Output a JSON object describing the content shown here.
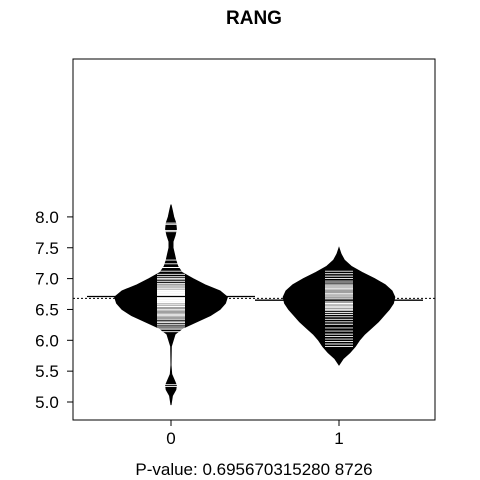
{
  "chart_data": {
    "type": "beanplot",
    "title": "RANG",
    "xlabel": "P-value: 0.695670315280 8726",
    "ylabel": "",
    "ylim": [
      4.85,
      8.35
    ],
    "y_ticks": [
      "5.0",
      "5.5",
      "6.0",
      "6.5",
      "7.0",
      "7.5",
      "8.0"
    ],
    "y_tick_values": [
      5.0,
      5.5,
      6.0,
      6.5,
      7.0,
      7.5,
      8.0
    ],
    "categories": [
      "0",
      "1"
    ],
    "overall_mean_line": 6.68,
    "grid": false,
    "legend": "none",
    "groups": [
      {
        "name": "0",
        "mean": 6.71,
        "density": [
          [
            4.95,
            0.0
          ],
          [
            5.1,
            0.02
          ],
          [
            5.2,
            0.07
          ],
          [
            5.27,
            0.08
          ],
          [
            5.35,
            0.05
          ],
          [
            5.45,
            0.01
          ],
          [
            5.6,
            0.0
          ],
          [
            5.9,
            0.005
          ],
          [
            6.1,
            0.06
          ],
          [
            6.2,
            0.18
          ],
          [
            6.3,
            0.38
          ],
          [
            6.4,
            0.58
          ],
          [
            6.5,
            0.72
          ],
          [
            6.6,
            0.8
          ],
          [
            6.7,
            0.83
          ],
          [
            6.8,
            0.72
          ],
          [
            6.9,
            0.5
          ],
          [
            7.0,
            0.32
          ],
          [
            7.1,
            0.16
          ],
          [
            7.2,
            0.1
          ],
          [
            7.3,
            0.07
          ],
          [
            7.4,
            0.05
          ],
          [
            7.5,
            0.03
          ],
          [
            7.6,
            0.03
          ],
          [
            7.7,
            0.06
          ],
          [
            7.8,
            0.08
          ],
          [
            7.9,
            0.07
          ],
          [
            8.0,
            0.04
          ],
          [
            8.1,
            0.02
          ],
          [
            8.2,
            0.0
          ]
        ],
        "observations": [
          5.25,
          5.28,
          6.14,
          6.18,
          6.2,
          6.23,
          6.26,
          6.29,
          6.31,
          6.34,
          6.36,
          6.38,
          6.4,
          6.42,
          6.44,
          6.46,
          6.48,
          6.5,
          6.52,
          6.54,
          6.55,
          6.57,
          6.58,
          6.6,
          6.61,
          6.62,
          6.63,
          6.64,
          6.65,
          6.66,
          6.67,
          6.68,
          6.69,
          6.7,
          6.71,
          6.72,
          6.73,
          6.74,
          6.75,
          6.76,
          6.77,
          6.78,
          6.79,
          6.8,
          6.81,
          6.82,
          6.84,
          6.86,
          6.88,
          6.9,
          6.92,
          6.95,
          6.98,
          7.0,
          7.03,
          7.07,
          7.12,
          7.18,
          7.24,
          7.3,
          7.76,
          7.78,
          7.88,
          7.9
        ]
      },
      {
        "name": "1",
        "mean": 6.65,
        "density": [
          [
            5.6,
            0.0
          ],
          [
            5.7,
            0.06
          ],
          [
            5.8,
            0.16
          ],
          [
            5.9,
            0.24
          ],
          [
            6.0,
            0.3
          ],
          [
            6.1,
            0.38
          ],
          [
            6.2,
            0.48
          ],
          [
            6.3,
            0.58
          ],
          [
            6.4,
            0.66
          ],
          [
            6.5,
            0.74
          ],
          [
            6.6,
            0.8
          ],
          [
            6.7,
            0.82
          ],
          [
            6.8,
            0.78
          ],
          [
            6.9,
            0.68
          ],
          [
            7.0,
            0.52
          ],
          [
            7.1,
            0.34
          ],
          [
            7.2,
            0.18
          ],
          [
            7.3,
            0.08
          ],
          [
            7.4,
            0.03
          ],
          [
            7.5,
            0.0
          ]
        ],
        "observations": [
          5.9,
          5.94,
          5.98,
          6.02,
          6.06,
          6.1,
          6.15,
          6.2,
          6.26,
          6.3,
          6.34,
          6.38,
          6.42,
          6.45,
          6.48,
          6.5,
          6.52,
          6.53,
          6.55,
          6.57,
          6.59,
          6.6,
          6.62,
          6.64,
          6.66,
          6.68,
          6.7,
          6.72,
          6.74,
          6.76,
          6.78,
          6.8,
          6.82,
          6.84,
          6.86,
          6.88,
          6.9,
          6.93,
          6.96,
          7.0,
          7.04,
          7.08,
          7.12
        ]
      }
    ]
  }
}
